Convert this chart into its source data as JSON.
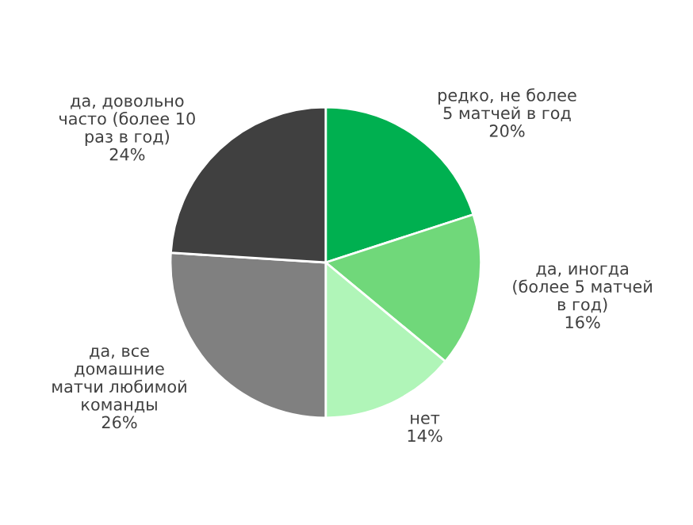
{
  "chart_data": {
    "type": "pie",
    "categories": [
      "редко, не более\n5 матчей в год",
      "да, иногда\n(более 5 матчей\nв год)",
      "нет",
      "да, все\nдомашние\nматчи любимой\nкоманды",
      "да, довольно\nчасто (более 10\nраз в год)"
    ],
    "values": [
      20,
      16,
      14,
      26,
      24
    ],
    "value_labels": [
      "20%",
      "16%",
      "14%",
      "26%",
      "24%"
    ],
    "colors": [
      "#00b050",
      "#70d87a",
      "#b0f5b8",
      "#808080",
      "#404040"
    ]
  }
}
